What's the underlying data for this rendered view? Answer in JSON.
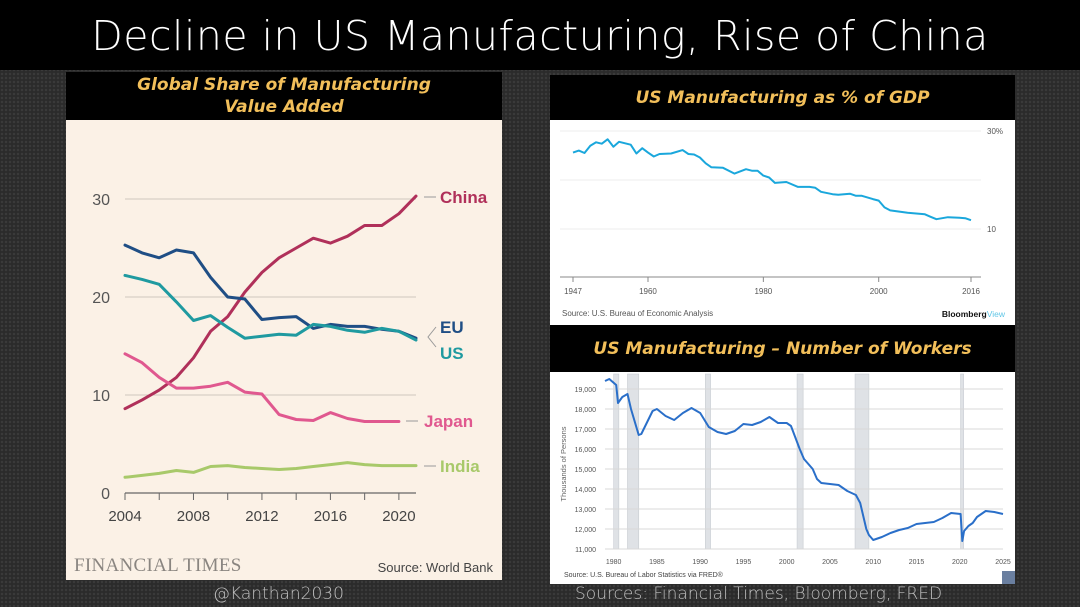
{
  "title": "Decline in US Manufacturing, Rise of China",
  "footer": {
    "handle": "@Kanthan2030",
    "sources": "Sources: Financial Times, Bloomberg, FRED"
  },
  "panels": {
    "left": {
      "heading_line1": "Global Share of Manufacturing",
      "heading_line2": "Value Added",
      "brand": "FINANCIAL TIMES",
      "source": "Source: World Bank"
    },
    "top_right": {
      "heading": "US Manufacturing as % of GDP",
      "source": "Source: U.S. Bureau of Economic Analysis",
      "brand_a": "Bloomberg",
      "brand_b": "View"
    },
    "bottom_right": {
      "heading": "US Manufacturing – Number of Workers",
      "source": "Source: U.S. Bureau of Labor Statistics via FRED®"
    }
  },
  "chart_data": [
    {
      "type": "line",
      "title": "Global Share of Manufacturing Value Added",
      "xlim": [
        2004,
        2021
      ],
      "ylim": [
        0,
        30
      ],
      "xticks": [
        2004,
        2008,
        2012,
        2016,
        2020
      ],
      "yticks": [
        0,
        10,
        20,
        30
      ],
      "grid": true,
      "background": "#fbf1e6",
      "series": [
        {
          "name": "China",
          "color": "#b0305a",
          "x": [
            2004,
            2005,
            2006,
            2007,
            2008,
            2009,
            2010,
            2011,
            2012,
            2013,
            2014,
            2015,
            2016,
            2017,
            2018,
            2019,
            2020,
            2021
          ],
          "values": [
            8.6,
            9.5,
            10.5,
            11.8,
            13.8,
            16.5,
            18,
            20.5,
            22.5,
            24,
            25,
            26,
            25.5,
            26.2,
            27.3,
            27.3,
            28.5,
            30.3
          ]
        },
        {
          "name": "EU",
          "color": "#1f4e85",
          "x": [
            2004,
            2005,
            2006,
            2007,
            2008,
            2009,
            2010,
            2011,
            2012,
            2013,
            2014,
            2015,
            2016,
            2017,
            2018,
            2019,
            2020,
            2021
          ],
          "values": [
            25.3,
            24.5,
            24,
            24.8,
            24.5,
            22,
            20,
            19.8,
            17.7,
            17.9,
            18,
            16.8,
            17.2,
            17,
            17,
            16.7,
            16.5,
            15.8
          ]
        },
        {
          "name": "US",
          "color": "#1f9aa0",
          "x": [
            2004,
            2005,
            2006,
            2007,
            2008,
            2009,
            2010,
            2011,
            2012,
            2013,
            2014,
            2015,
            2016,
            2017,
            2018,
            2019,
            2020,
            2021
          ],
          "values": [
            22.2,
            21.8,
            21.3,
            19.5,
            17.6,
            18.1,
            16.9,
            15.8,
            16,
            16.2,
            16.1,
            17.2,
            17,
            16.6,
            16.4,
            16.8,
            16.5,
            15.6
          ]
        },
        {
          "name": "Japan",
          "color": "#e0588f",
          "x": [
            2004,
            2005,
            2006,
            2007,
            2008,
            2009,
            2010,
            2011,
            2012,
            2013,
            2014,
            2015,
            2016,
            2017,
            2018,
            2019,
            2020
          ],
          "values": [
            14.2,
            13.3,
            11.8,
            10.7,
            10.7,
            10.9,
            11.3,
            10.3,
            10.1,
            8,
            7.5,
            7.4,
            8.2,
            7.6,
            7.3,
            7.3,
            7.3
          ]
        },
        {
          "name": "India",
          "color": "#a8c96a",
          "x": [
            2004,
            2005,
            2006,
            2007,
            2008,
            2009,
            2010,
            2011,
            2012,
            2013,
            2014,
            2015,
            2016,
            2017,
            2018,
            2019,
            2020,
            2021
          ],
          "values": [
            1.6,
            1.8,
            2.0,
            2.3,
            2.1,
            2.7,
            2.8,
            2.6,
            2.5,
            2.4,
            2.5,
            2.7,
            2.9,
            3.1,
            2.9,
            2.8,
            2.8,
            2.8
          ]
        }
      ]
    },
    {
      "type": "line",
      "title": "US Manufacturing as % of GDP",
      "xlim": [
        1947,
        2016
      ],
      "ylim": [
        0,
        30
      ],
      "xticks": [
        1947,
        1960,
        1980,
        2000,
        2016
      ],
      "yticks": [
        10,
        20,
        30
      ],
      "ytick_labels": [
        "10",
        "",
        "30%"
      ],
      "grid": true,
      "color": "#1aa7dc",
      "series": [
        {
          "x": [
            1947,
            1948,
            1949,
            1950,
            1951,
            1952,
            1953,
            1954,
            1955,
            1957,
            1958,
            1959,
            1960,
            1961,
            1962,
            1964,
            1966,
            1967,
            1968,
            1969,
            1970,
            1971,
            1973,
            1975,
            1977,
            1978,
            1979,
            1980,
            1981,
            1982,
            1984,
            1986,
            1988,
            1989,
            1990,
            1992,
            1993,
            1995,
            1996,
            1997,
            1999,
            2000,
            2001,
            2002,
            2005,
            2006,
            2008,
            2009,
            2010,
            2012,
            2014,
            2015,
            2016
          ],
          "values": [
            25.6,
            26,
            25.5,
            27,
            27.7,
            27.4,
            28.3,
            26.8,
            27.8,
            27.2,
            25.4,
            26.5,
            25.6,
            24.8,
            25.3,
            25.4,
            26.1,
            25.3,
            25.2,
            24.6,
            23.4,
            22.6,
            22.5,
            21.3,
            22.2,
            21.9,
            21.9,
            20.9,
            20.5,
            19.4,
            19.6,
            18.6,
            18.6,
            18.4,
            17.6,
            17.1,
            17,
            17.2,
            16.8,
            16.8,
            16.1,
            15.8,
            14.4,
            13.8,
            13.3,
            13.2,
            13,
            12.5,
            12,
            12.4,
            12.3,
            12.2,
            11.8
          ]
        }
      ]
    },
    {
      "type": "line",
      "title": "US Manufacturing – Number of Workers",
      "ylabel": "Thousands of Persons",
      "xlim": [
        1979,
        2025
      ],
      "ylim": [
        11000,
        19500
      ],
      "xticks": [
        1980,
        1985,
        1990,
        1995,
        2000,
        2005,
        2010,
        2015,
        2020,
        2025
      ],
      "yticks": [
        11000,
        12000,
        13000,
        14000,
        15000,
        16000,
        17000,
        18000,
        19000
      ],
      "ytick_labels": [
        "11,000",
        "12,000",
        "13,000",
        "14,000",
        "15,000",
        "16,000",
        "17,000",
        "18,000",
        "19,000"
      ],
      "grid": true,
      "color": "#2a6fc9",
      "recessions": [
        [
          1980.0,
          1980.6
        ],
        [
          1981.6,
          1982.9
        ],
        [
          1990.6,
          1991.2
        ],
        [
          2001.2,
          2001.9
        ],
        [
          2007.9,
          2009.5
        ],
        [
          2020.1,
          2020.4
        ]
      ],
      "series": [
        {
          "x": [
            1979,
            1979.5,
            1980.3,
            1980.5,
            1981,
            1981.6,
            1982,
            1982.9,
            1983.2,
            1984.5,
            1985,
            1986,
            1987,
            1988,
            1989,
            1990,
            1991,
            1992,
            1993,
            1994,
            1995,
            1996,
            1997,
            1998,
            1999,
            2000,
            2000.5,
            2001.5,
            2002,
            2003,
            2003.5,
            2004,
            2005,
            2006,
            2007,
            2008,
            2008.5,
            2009.2,
            2009.5,
            2010,
            2011,
            2012,
            2013,
            2014,
            2015,
            2016,
            2017,
            2018,
            2019,
            2020.1,
            2020.3,
            2020.5,
            2021,
            2021.5,
            2022,
            2023,
            2024,
            2025
          ],
          "values": [
            19400,
            19500,
            19200,
            18300,
            18600,
            18750,
            18000,
            16700,
            16750,
            17900,
            18000,
            17650,
            17450,
            17800,
            18050,
            17800,
            17100,
            16850,
            16750,
            16900,
            17250,
            17200,
            17350,
            17600,
            17300,
            17300,
            17150,
            16000,
            15500,
            15000,
            14500,
            14300,
            14250,
            14200,
            13900,
            13700,
            13300,
            12000,
            11700,
            11450,
            11600,
            11800,
            11950,
            12050,
            12250,
            12300,
            12350,
            12550,
            12800,
            12750,
            11400,
            11900,
            12150,
            12300,
            12600,
            12900,
            12850,
            12750
          ]
        }
      ]
    }
  ]
}
